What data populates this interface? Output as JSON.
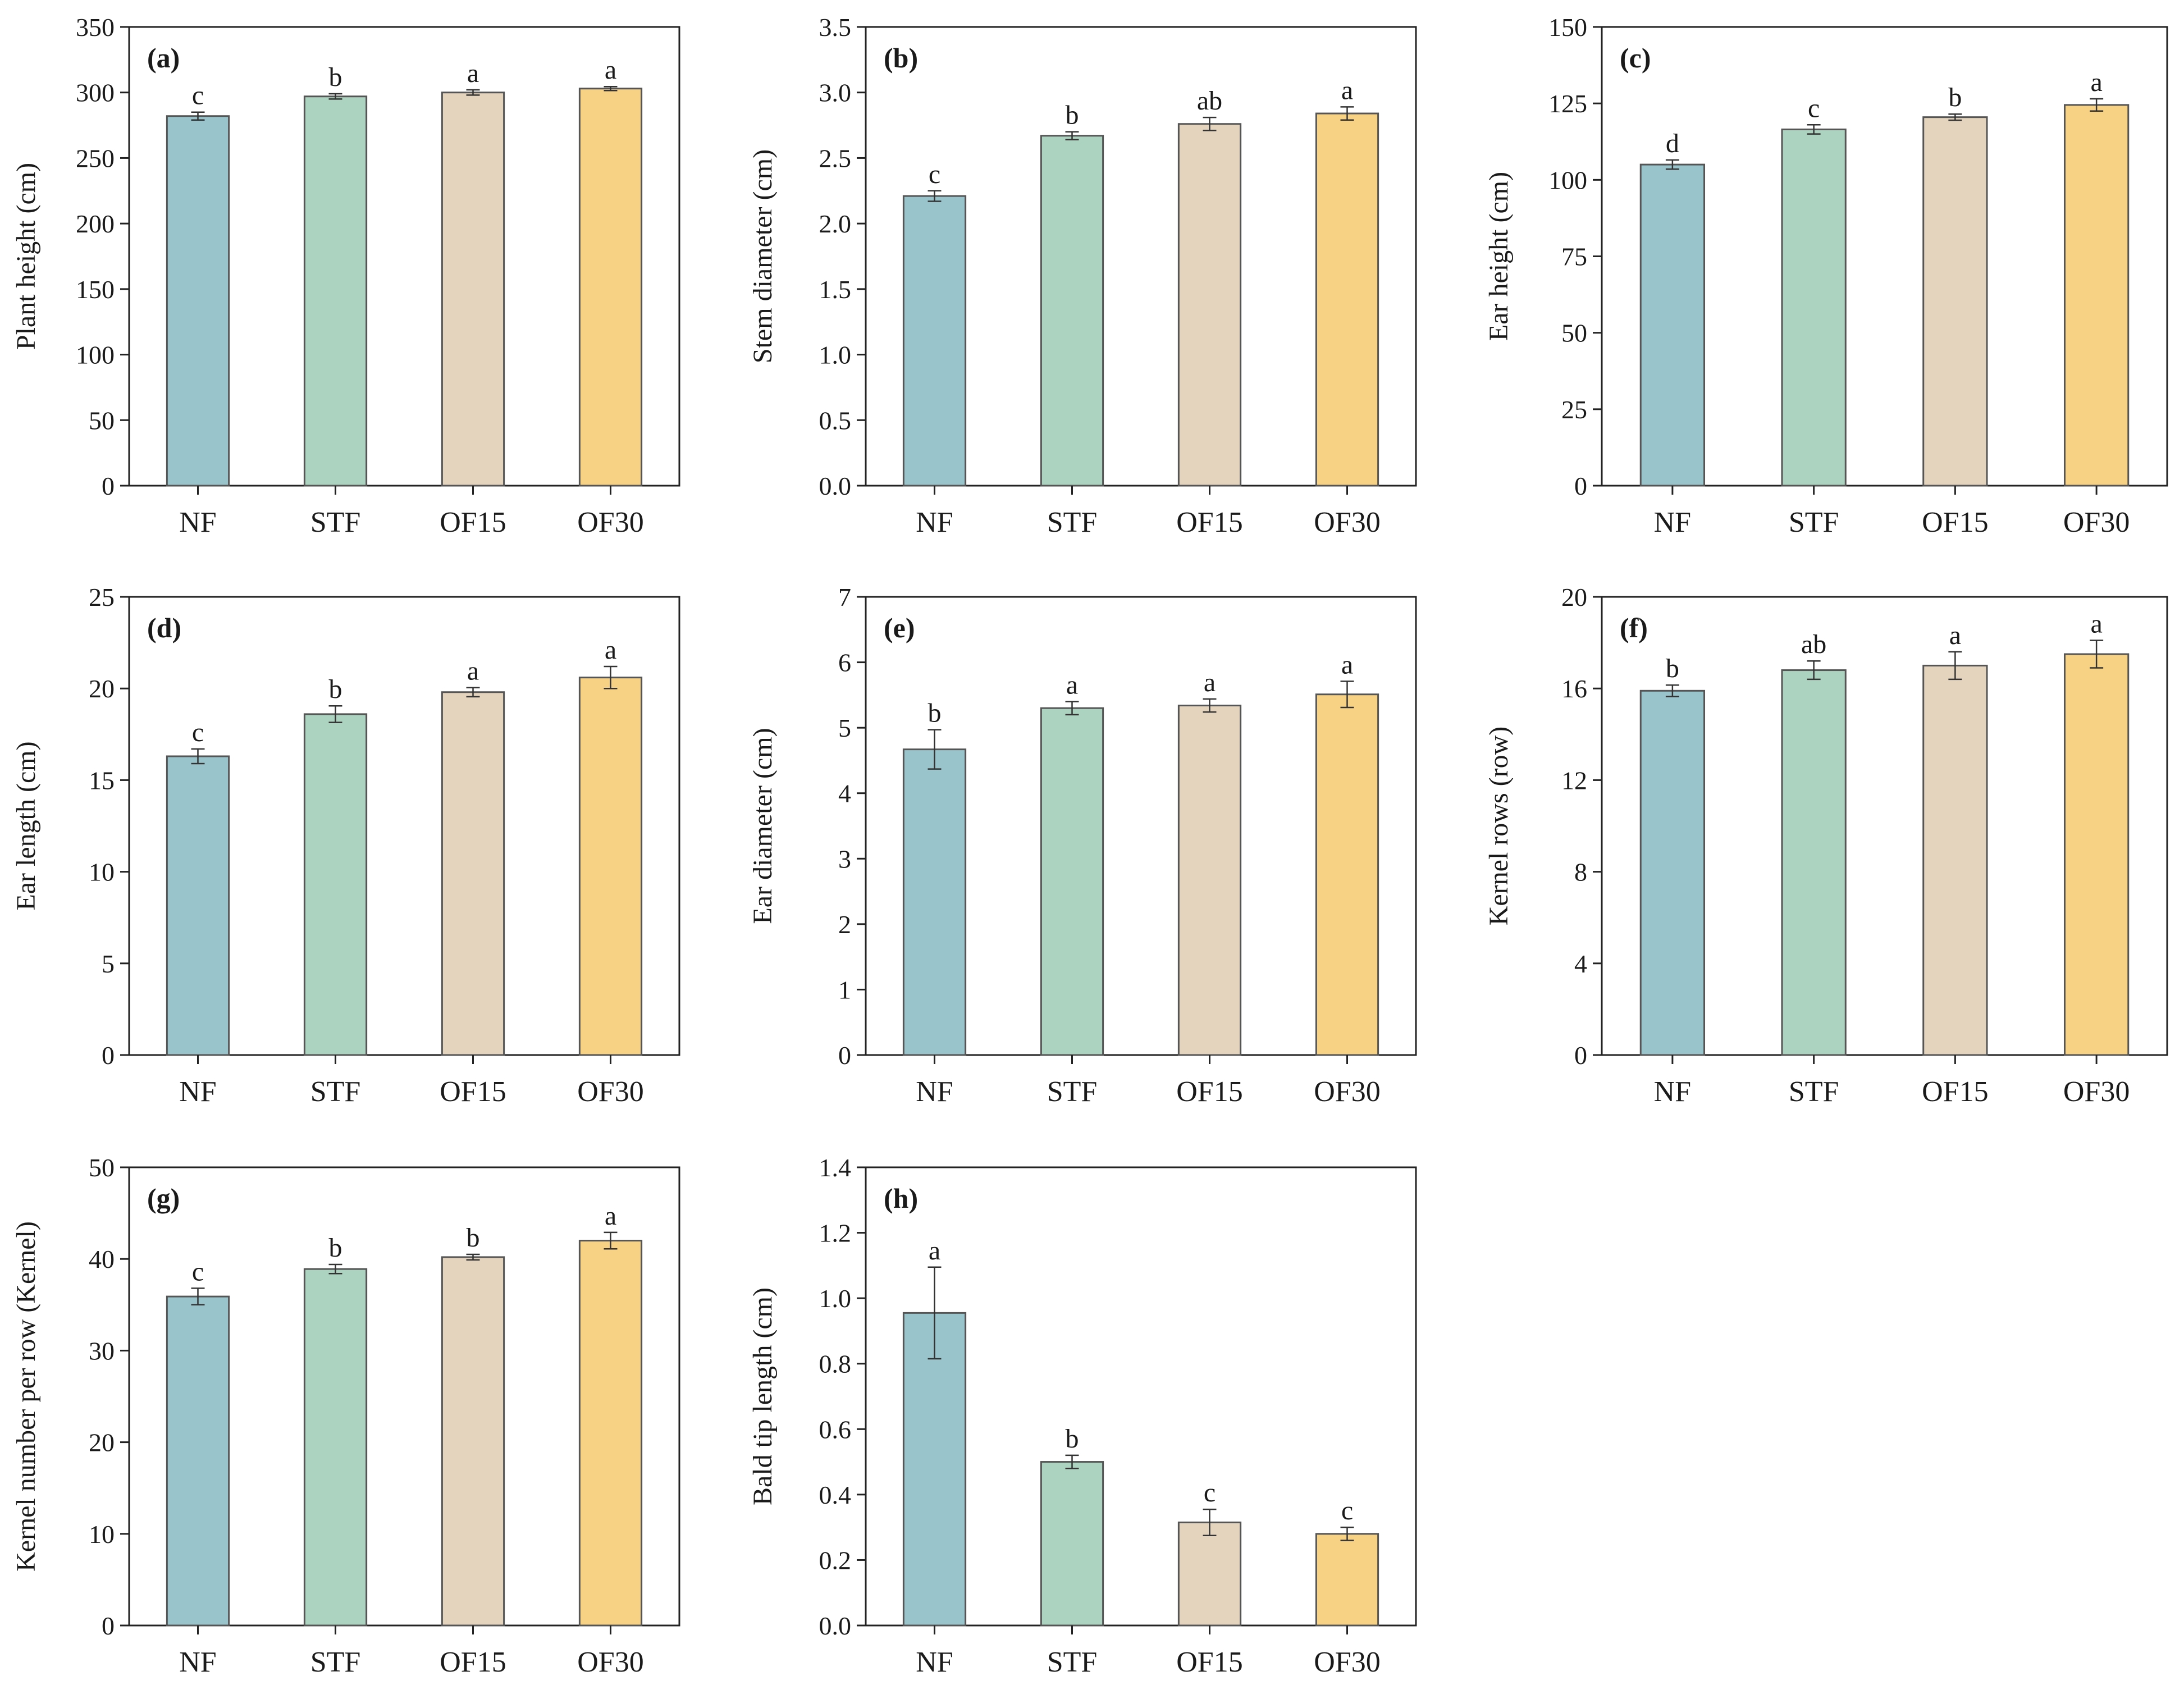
{
  "categories": [
    "NF",
    "STF",
    "OF15",
    "OF30"
  ],
  "colors": {
    "bars": [
      "#9ac4cc",
      "#acd3bf",
      "#e4d4bd",
      "#f7d184"
    ],
    "bar_edge": "#555555",
    "axis": "#222222"
  },
  "chart_data": [
    {
      "type": "bar",
      "panel": "(a)",
      "ylabel": "Plant height (cm)",
      "ylim": [
        0,
        350
      ],
      "yticks": [
        0,
        50,
        100,
        150,
        200,
        250,
        300,
        350
      ],
      "categories": [
        "NF",
        "STF",
        "OF15",
        "OF30"
      ],
      "values": [
        282,
        297,
        300,
        303
      ],
      "errors": [
        3,
        2,
        2,
        1.5
      ],
      "significance": [
        "c",
        "b",
        "a",
        "a"
      ]
    },
    {
      "type": "bar",
      "panel": "(b)",
      "ylabel": "Stem diameter (cm)",
      "ylim": [
        0,
        3.5
      ],
      "yticks": [
        "0.0",
        "0.5",
        "1.0",
        "1.5",
        "2.0",
        "2.5",
        "3.0",
        "3.5"
      ],
      "categories": [
        "NF",
        "STF",
        "OF15",
        "OF30"
      ],
      "values": [
        2.21,
        2.67,
        2.76,
        2.84
      ],
      "errors": [
        0.04,
        0.03,
        0.05,
        0.05
      ],
      "significance": [
        "c",
        "b",
        "ab",
        "a"
      ]
    },
    {
      "type": "bar",
      "panel": "(c)",
      "ylabel": "Ear height (cm)",
      "ylim": [
        0,
        150
      ],
      "yticks": [
        0,
        25,
        50,
        75,
        100,
        125,
        150
      ],
      "categories": [
        "NF",
        "STF",
        "OF15",
        "OF30"
      ],
      "values": [
        105,
        116.5,
        120.5,
        124.5
      ],
      "errors": [
        1.5,
        1.5,
        1.0,
        2.0
      ],
      "significance": [
        "d",
        "c",
        "b",
        "a"
      ]
    },
    {
      "type": "bar",
      "panel": "(d)",
      "ylabel": "Ear length (cm)",
      "ylim": [
        0,
        25
      ],
      "yticks": [
        0,
        5,
        10,
        15,
        20,
        25
      ],
      "categories": [
        "NF",
        "STF",
        "OF15",
        "OF30"
      ],
      "values": [
        16.3,
        18.6,
        19.8,
        20.6
      ],
      "errors": [
        0.4,
        0.45,
        0.25,
        0.6
      ],
      "significance": [
        "c",
        "b",
        "a",
        "a"
      ]
    },
    {
      "type": "bar",
      "panel": "(e)",
      "ylabel": "Ear diameter (cm)",
      "ylim": [
        0,
        7
      ],
      "yticks": [
        0,
        1,
        2,
        3,
        4,
        5,
        6,
        7
      ],
      "categories": [
        "NF",
        "STF",
        "OF15",
        "OF30"
      ],
      "values": [
        4.67,
        5.3,
        5.34,
        5.51
      ],
      "errors": [
        0.3,
        0.1,
        0.1,
        0.2
      ],
      "significance": [
        "b",
        "a",
        "a",
        "a"
      ]
    },
    {
      "type": "bar",
      "panel": "(f)",
      "ylabel": "Kernel rows (row)",
      "ylim": [
        0,
        20
      ],
      "yticks": [
        0,
        4,
        8,
        12,
        16,
        20
      ],
      "categories": [
        "NF",
        "STF",
        "OF15",
        "OF30"
      ],
      "values": [
        15.9,
        16.8,
        17.0,
        17.5
      ],
      "errors": [
        0.25,
        0.4,
        0.6,
        0.6
      ],
      "significance": [
        "b",
        "ab",
        "a",
        "a"
      ]
    },
    {
      "type": "bar",
      "panel": "(g)",
      "ylabel": "Kernel number per row (Kernel)",
      "ylim": [
        0,
        50
      ],
      "yticks": [
        0,
        10,
        20,
        30,
        40,
        50
      ],
      "categories": [
        "NF",
        "STF",
        "OF15",
        "OF30"
      ],
      "values": [
        35.9,
        38.9,
        40.2,
        42.0
      ],
      "errors": [
        0.9,
        0.5,
        0.3,
        0.9
      ],
      "significance": [
        "c",
        "b",
        "b",
        "a"
      ]
    },
    {
      "type": "bar",
      "panel": "(h)",
      "ylabel": "Bald tip length (cm)",
      "ylim": [
        0,
        1.4
      ],
      "yticks": [
        "0.0",
        "0.2",
        "0.4",
        "0.6",
        "0.8",
        "1.0",
        "1.2",
        "1.4"
      ],
      "categories": [
        "NF",
        "STF",
        "OF15",
        "OF30"
      ],
      "values": [
        0.955,
        0.5,
        0.315,
        0.28
      ],
      "errors": [
        0.14,
        0.02,
        0.04,
        0.02
      ],
      "significance": [
        "a",
        "b",
        "c",
        "c"
      ]
    }
  ]
}
